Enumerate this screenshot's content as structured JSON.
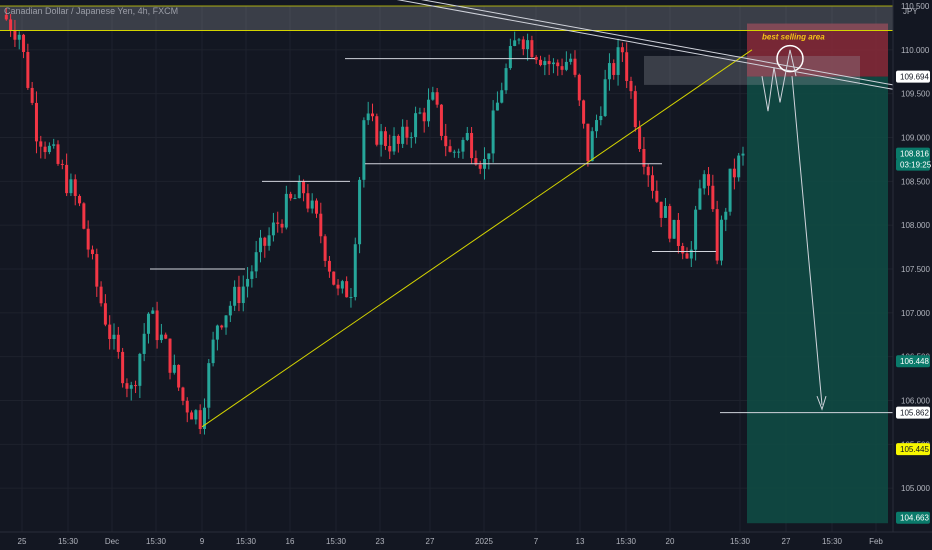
{
  "header": {
    "instrument": "Canadian Dollar / Japanese Yen, 4h, FXCM"
  },
  "currency_label": "JPY",
  "annotation": "best selling area",
  "colors": {
    "bull": "#26a69a",
    "bear": "#f23645",
    "bg": "#131722",
    "support": "#d4d400",
    "sell_zone": "#8a2a38",
    "target_zone": "#0f4d45"
  },
  "price_tags": [
    {
      "value": "109.694",
      "style": "white"
    },
    {
      "value": "108.816",
      "style": "teal"
    },
    {
      "value": "03:19:25",
      "style": "teal"
    },
    {
      "value": "106.448",
      "style": "teal"
    },
    {
      "value": "105.862",
      "style": "white"
    },
    {
      "value": "105.445",
      "style": "yellow"
    },
    {
      "value": "104.663",
      "style": "teal"
    }
  ],
  "chart_data": {
    "type": "candlestick",
    "ylim": [
      104.5,
      110.5
    ],
    "y_ticks": [
      "110.500",
      "110.000",
      "109.500",
      "109.000",
      "108.500",
      "108.000",
      "107.500",
      "107.000",
      "106.500",
      "106.000",
      "105.500",
      "105.000"
    ],
    "x_ticks": [
      "25",
      "15:30",
      "Dec",
      "15:30",
      "9",
      "15:30",
      "16",
      "15:30",
      "23",
      "27",
      "2025",
      "7",
      "13",
      "15:30",
      "20",
      "15:30",
      "27",
      "15:30",
      "Feb"
    ],
    "price_path": [
      [
        0,
        110.4
      ],
      [
        4,
        110.2
      ],
      [
        8,
        109.1
      ],
      [
        14,
        108.6
      ],
      [
        18,
        108.2
      ],
      [
        22,
        107.3
      ],
      [
        26,
        106.6
      ],
      [
        30,
        106.1
      ],
      [
        34,
        107.0
      ],
      [
        38,
        106.6
      ],
      [
        42,
        106.0
      ],
      [
        46,
        105.8
      ],
      [
        50,
        106.9
      ],
      [
        56,
        107.3
      ],
      [
        60,
        107.7
      ],
      [
        66,
        108.2
      ],
      [
        70,
        108.4
      ],
      [
        74,
        107.9
      ],
      [
        78,
        107.2
      ],
      [
        81,
        107.3
      ],
      [
        84,
        109.2
      ],
      [
        88,
        109.0
      ],
      [
        92,
        108.9
      ],
      [
        96,
        109.2
      ],
      [
        100,
        109.4
      ],
      [
        104,
        108.8
      ],
      [
        108,
        109.0
      ],
      [
        112,
        108.7
      ],
      [
        116,
        109.6
      ],
      [
        120,
        110.2
      ],
      [
        124,
        110.0
      ],
      [
        128,
        109.8
      ],
      [
        132,
        109.9
      ],
      [
        136,
        108.8
      ],
      [
        140,
        109.6
      ],
      [
        144,
        110.0
      ],
      [
        148,
        109.0
      ],
      [
        152,
        108.3
      ],
      [
        156,
        107.9
      ],
      [
        160,
        107.7
      ],
      [
        163,
        108.7
      ],
      [
        166,
        107.7
      ],
      [
        169,
        108.5
      ],
      [
        172,
        108.816
      ]
    ],
    "levels": [
      {
        "y": 110.3,
        "kind": "sell zone top"
      },
      {
        "y": 109.9,
        "kind": "resistance"
      },
      {
        "y": 109.694,
        "kind": "sell zone bottom"
      },
      {
        "y": 108.7,
        "kind": "range low"
      },
      {
        "y": 108.5,
        "kind": "breakout level"
      },
      {
        "y": 107.5,
        "kind": "breakout level"
      },
      {
        "y": 107.7,
        "kind": "recent low"
      },
      {
        "y": 105.862,
        "kind": "target"
      }
    ]
  }
}
